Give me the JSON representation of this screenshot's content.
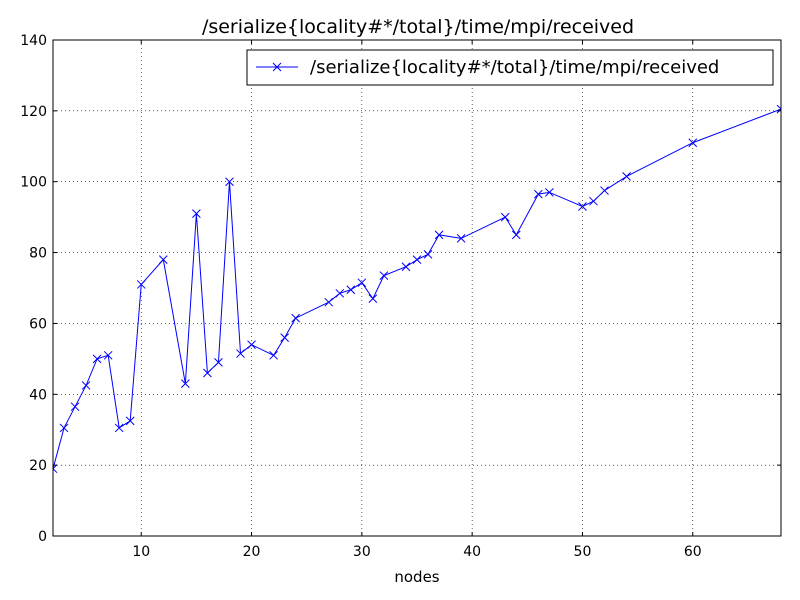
{
  "chart_data": {
    "type": "line",
    "title": "/serialize{locality#*/total}/time/mpi/received",
    "xlabel": "nodes",
    "ylabel": "",
    "xlim": [
      2,
      68
    ],
    "ylim": [
      0,
      140
    ],
    "xticks": [
      10,
      20,
      30,
      40,
      50,
      60
    ],
    "yticks": [
      0,
      20,
      40,
      60,
      80,
      100,
      120,
      140
    ],
    "grid": true,
    "legend_position": "top-right",
    "colors": {
      "series": "#0000ff",
      "grid": "#000000",
      "axes": "#000000"
    },
    "series": [
      {
        "name": "/serialize{locality#*/total}/time/mpi/received",
        "marker": "x",
        "x": [
          2,
          3,
          4,
          5,
          6,
          7,
          8,
          9,
          10,
          12,
          14,
          15,
          16,
          17,
          18,
          19,
          20,
          22,
          23,
          24,
          27,
          28,
          29,
          30,
          31,
          32,
          34,
          35,
          36,
          37,
          39,
          43,
          44,
          46,
          47,
          50,
          51,
          52,
          54,
          60,
          68
        ],
        "y": [
          19,
          30.5,
          36.5,
          42.5,
          50,
          51,
          30.5,
          32.5,
          71,
          78,
          43,
          91,
          46,
          49,
          100,
          51.5,
          54,
          51,
          56,
          61.5,
          66,
          68.5,
          69.5,
          71.5,
          67,
          73.5,
          76,
          78,
          79.5,
          85,
          84,
          90,
          85,
          96.5,
          97,
          93,
          94.5,
          97.5,
          101.5,
          111,
          120.5
        ]
      }
    ]
  }
}
